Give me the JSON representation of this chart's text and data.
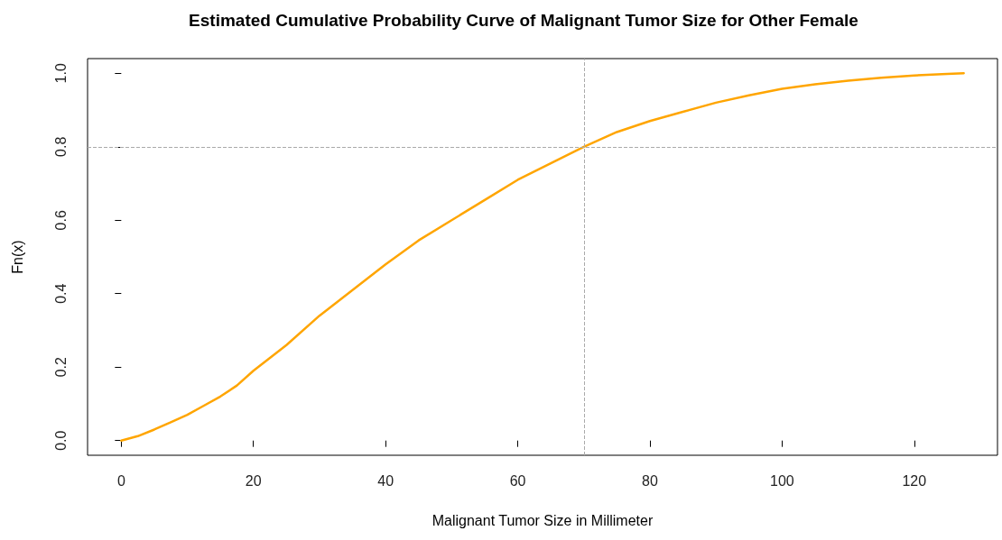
{
  "chart_data": {
    "type": "line",
    "title": "Estimated Cumulative Probability Curve of Malignant Tumor Size for Other Female",
    "xlabel": "Malignant Tumor Size in Millimeter",
    "ylabel": "Fn(x)",
    "x": [
      0,
      2.5,
      5,
      7.5,
      10,
      12.5,
      15,
      17.5,
      20,
      25,
      30,
      35,
      40,
      45,
      50,
      55,
      60,
      65,
      70,
      75,
      80,
      85,
      90,
      95,
      100,
      105,
      110,
      115,
      120,
      125,
      127.5
    ],
    "series": [
      {
        "color": "#ffa500",
        "values": [
          0,
          0.012,
          0.03,
          0.05,
          0.07,
          0.095,
          0.12,
          0.15,
          0.19,
          0.26,
          0.34,
          0.41,
          0.48,
          0.545,
          0.6,
          0.655,
          0.71,
          0.755,
          0.8,
          0.84,
          0.87,
          0.895,
          0.92,
          0.94,
          0.958,
          0.97,
          0.98,
          0.988,
          0.994,
          0.998,
          1.0
        ]
      }
    ],
    "xlim": [
      -5.1,
      132.6
    ],
    "ylim": [
      -0.04,
      1.04
    ],
    "xticks": [
      0,
      20,
      40,
      60,
      80,
      100,
      120
    ],
    "yticks": [
      {
        "value": 0,
        "label": "0.0"
      },
      {
        "value": 0.2,
        "label": "0.2"
      },
      {
        "value": 0.4,
        "label": "0.4"
      },
      {
        "value": 0.6,
        "label": "0.6"
      },
      {
        "value": 0.8,
        "label": "0.8"
      },
      {
        "value": 1,
        "label": "1.0"
      }
    ],
    "ref_lines": [
      {
        "axis": "x",
        "value": 70,
        "color": "#aaaaaa",
        "line_style": "dashed"
      },
      {
        "axis": "y",
        "value": 0.8,
        "color": "#aaaaaa",
        "line_style": "dashed"
      }
    ],
    "grid": false,
    "marker": "none",
    "line_style": "solid"
  }
}
